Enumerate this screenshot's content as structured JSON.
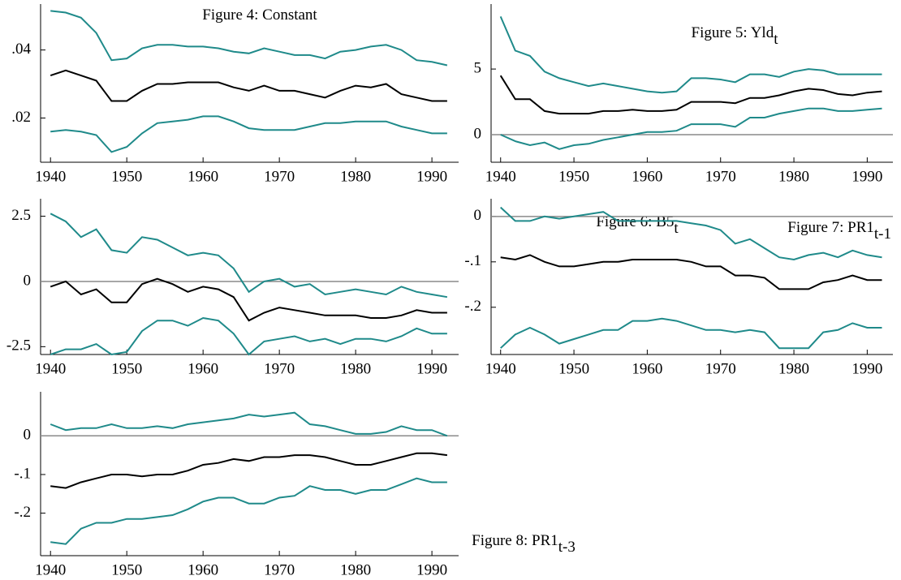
{
  "chart_data": [
    {
      "type": "line",
      "title": "Figure 4:  Constant",
      "x": [
        1940,
        1942,
        1944,
        1946,
        1948,
        1950,
        1952,
        1954,
        1956,
        1958,
        1960,
        1962,
        1964,
        1966,
        1968,
        1970,
        1972,
        1974,
        1976,
        1978,
        1980,
        1982,
        1984,
        1986,
        1988,
        1990,
        1992
      ],
      "series": [
        {
          "color": "#1f8a8a",
          "values": [
            0.0515,
            0.051,
            0.0495,
            0.045,
            0.037,
            0.0375,
            0.0405,
            0.0415,
            0.0415,
            0.041,
            0.041,
            0.0405,
            0.0395,
            0.039,
            0.0405,
            0.0395,
            0.0385,
            0.0385,
            0.0375,
            0.0395,
            0.04,
            0.041,
            0.0415,
            0.04,
            0.037,
            0.0365,
            0.0355
          ]
        },
        {
          "color": "#000000",
          "values": [
            0.0325,
            0.034,
            0.0325,
            0.031,
            0.025,
            0.025,
            0.028,
            0.03,
            0.03,
            0.0305,
            0.0305,
            0.0305,
            0.029,
            0.028,
            0.0295,
            0.028,
            0.028,
            0.027,
            0.026,
            0.028,
            0.0295,
            0.029,
            0.03,
            0.027,
            0.026,
            0.025,
            0.025
          ]
        },
        {
          "color": "#1f8a8a",
          "values": [
            0.016,
            0.0165,
            0.016,
            0.015,
            0.01,
            0.0115,
            0.0155,
            0.0185,
            0.019,
            0.0195,
            0.0205,
            0.0205,
            0.019,
            0.017,
            0.0165,
            0.0165,
            0.0165,
            0.0175,
            0.0185,
            0.0185,
            0.019,
            0.019,
            0.019,
            0.0175,
            0.0165,
            0.0155,
            0.0155
          ]
        }
      ],
      "xlim": [
        1938.7,
        1993.5
      ],
      "xticks": [
        1940,
        1950,
        1960,
        1970,
        1980,
        1990
      ],
      "ylim": [
        0.007,
        0.0535
      ],
      "yticks": [
        {
          "value": 0.02,
          "label": ".02"
        },
        {
          "value": 0.04,
          "label": ".04"
        }
      ],
      "zero_line": false
    },
    {
      "type": "line",
      "title": "Figure 5:  Yld",
      "title_subscript": "t",
      "x": [
        1940,
        1942,
        1944,
        1946,
        1948,
        1950,
        1952,
        1954,
        1956,
        1958,
        1960,
        1962,
        1964,
        1966,
        1968,
        1970,
        1972,
        1974,
        1976,
        1978,
        1980,
        1982,
        1984,
        1986,
        1988,
        1990,
        1992
      ],
      "series": [
        {
          "color": "#1f8a8a",
          "values": [
            9.0,
            6.4,
            6.0,
            4.8,
            4.3,
            4.0,
            3.7,
            3.9,
            3.7,
            3.5,
            3.3,
            3.2,
            3.3,
            4.3,
            4.3,
            4.2,
            4.0,
            4.6,
            4.6,
            4.4,
            4.8,
            5.0,
            4.9,
            4.6,
            4.6,
            4.6,
            4.6
          ]
        },
        {
          "color": "#000000",
          "values": [
            4.5,
            2.7,
            2.7,
            1.8,
            1.6,
            1.6,
            1.6,
            1.8,
            1.8,
            1.9,
            1.8,
            1.8,
            1.9,
            2.5,
            2.5,
            2.5,
            2.4,
            2.8,
            2.8,
            3.0,
            3.3,
            3.5,
            3.4,
            3.1,
            3.0,
            3.2,
            3.3
          ]
        },
        {
          "color": "#1f8a8a",
          "values": [
            0,
            -0.5,
            -0.8,
            -0.6,
            -1.1,
            -0.8,
            -0.7,
            -0.4,
            -0.2,
            0,
            0.2,
            0.2,
            0.3,
            0.8,
            0.8,
            0.8,
            0.6,
            1.3,
            1.3,
            1.6,
            1.8,
            2.0,
            2.0,
            1.8,
            1.8,
            1.9,
            2.0
          ]
        }
      ],
      "xlim": [
        1938.7,
        1993.5
      ],
      "xticks": [
        1940,
        1950,
        1960,
        1970,
        1980,
        1990
      ],
      "ylim": [
        -2.1,
        9.95
      ],
      "yticks": [
        0,
        5
      ],
      "zero_line": true
    },
    {
      "type": "line",
      "title": "Figure 6:  B5",
      "title_subscript": "t",
      "x": [
        1940,
        1942,
        1944,
        1946,
        1948,
        1950,
        1952,
        1954,
        1956,
        1958,
        1960,
        1962,
        1964,
        1966,
        1968,
        1970,
        1972,
        1974,
        1976,
        1978,
        1980,
        1982,
        1984,
        1986,
        1988,
        1990,
        1992
      ],
      "series": [
        {
          "color": "#1f8a8a",
          "values": [
            2.6,
            2.3,
            1.7,
            2.0,
            1.2,
            1.1,
            1.7,
            1.6,
            1.3,
            1.0,
            1.1,
            1.0,
            0.5,
            -0.4,
            0,
            0.1,
            -0.2,
            -0.1,
            -0.5,
            -0.4,
            -0.3,
            -0.4,
            -0.5,
            -0.2,
            -0.4,
            -0.5,
            -0.6
          ]
        },
        {
          "color": "#000000",
          "values": [
            -0.2,
            0.0,
            -0.5,
            -0.3,
            -0.8,
            -0.8,
            -0.1,
            0.1,
            -0.1,
            -0.4,
            -0.2,
            -0.3,
            -0.6,
            -1.5,
            -1.2,
            -1.0,
            -1.1,
            -1.2,
            -1.3,
            -1.3,
            -1.3,
            -1.4,
            -1.4,
            -1.3,
            -1.1,
            -1.2,
            -1.2
          ]
        },
        {
          "color": "#1f8a8a",
          "values": [
            -2.8,
            -2.6,
            -2.6,
            -2.4,
            -2.8,
            -2.7,
            -1.9,
            -1.5,
            -1.5,
            -1.7,
            -1.4,
            -1.5,
            -2.0,
            -2.8,
            -2.3,
            -2.2,
            -2.1,
            -2.3,
            -2.2,
            -2.4,
            -2.2,
            -2.2,
            -2.3,
            -2.1,
            -1.8,
            -2.0,
            -2.0
          ]
        }
      ],
      "xlim": [
        1938.7,
        1993.5
      ],
      "xticks": [
        1940,
        1950,
        1960,
        1970,
        1980,
        1990
      ],
      "ylim": [
        -2.8,
        3.17
      ],
      "yticks": [
        -2.5,
        0,
        2.5
      ],
      "zero_line": true
    },
    {
      "type": "line",
      "title": "Figure 7:  PR1",
      "title_subscript": "t-1",
      "x": [
        1940,
        1942,
        1944,
        1946,
        1948,
        1950,
        1952,
        1954,
        1956,
        1958,
        1960,
        1962,
        1964,
        1966,
        1968,
        1970,
        1972,
        1974,
        1976,
        1978,
        1980,
        1982,
        1984,
        1986,
        1988,
        1990,
        1992
      ],
      "series": [
        {
          "color": "#1f8a8a",
          "values": [
            0.02,
            -0.01,
            -0.01,
            0.0,
            -0.005,
            0.0,
            0.005,
            0.01,
            -0.01,
            -0.01,
            -0.01,
            -0.01,
            -0.01,
            -0.015,
            -0.02,
            -0.03,
            -0.06,
            -0.05,
            -0.07,
            -0.09,
            -0.095,
            -0.085,
            -0.08,
            -0.09,
            -0.075,
            -0.085,
            -0.09
          ]
        },
        {
          "color": "#000000",
          "values": [
            -0.09,
            -0.095,
            -0.085,
            -0.1,
            -0.11,
            -0.11,
            -0.105,
            -0.1,
            -0.1,
            -0.095,
            -0.095,
            -0.095,
            -0.095,
            -0.1,
            -0.11,
            -0.11,
            -0.13,
            -0.13,
            -0.135,
            -0.16,
            -0.16,
            -0.16,
            -0.145,
            -0.14,
            -0.13,
            -0.14,
            -0.14
          ]
        },
        {
          "color": "#1f8a8a",
          "values": [
            -0.29,
            -0.26,
            -0.245,
            -0.26,
            -0.28,
            -0.27,
            -0.26,
            -0.25,
            -0.25,
            -0.23,
            -0.23,
            -0.225,
            -0.23,
            -0.24,
            -0.25,
            -0.25,
            -0.255,
            -0.25,
            -0.255,
            -0.29,
            -0.29,
            -0.29,
            -0.255,
            -0.25,
            -0.235,
            -0.245,
            -0.245
          ]
        }
      ],
      "xlim": [
        1938.7,
        1993.5
      ],
      "xticks": [
        1940,
        1950,
        1960,
        1970,
        1980,
        1990
      ],
      "ylim": [
        -0.304,
        0.039
      ],
      "yticks": [
        {
          "value": -0.2,
          "label": "-.2"
        },
        {
          "value": -0.1,
          "label": "-.1"
        },
        0
      ],
      "zero_line": true
    },
    {
      "type": "line",
      "title": "Figure 8:  PR1",
      "title_subscript": "t-3",
      "x": [
        1940,
        1942,
        1944,
        1946,
        1948,
        1950,
        1952,
        1954,
        1956,
        1958,
        1960,
        1962,
        1964,
        1966,
        1968,
        1970,
        1972,
        1974,
        1976,
        1978,
        1980,
        1982,
        1984,
        1986,
        1988,
        1990,
        1992
      ],
      "series": [
        {
          "color": "#1f8a8a",
          "values": [
            0.03,
            0.015,
            0.02,
            0.02,
            0.03,
            0.02,
            0.02,
            0.025,
            0.02,
            0.03,
            0.035,
            0.04,
            0.045,
            0.055,
            0.05,
            0.055,
            0.06,
            0.03,
            0.025,
            0.015,
            0.005,
            0.005,
            0.01,
            0.025,
            0.015,
            0.015,
            0.0
          ]
        },
        {
          "color": "#000000",
          "values": [
            -0.13,
            -0.135,
            -0.12,
            -0.11,
            -0.1,
            -0.1,
            -0.105,
            -0.1,
            -0.1,
            -0.09,
            -0.075,
            -0.07,
            -0.06,
            -0.065,
            -0.055,
            -0.055,
            -0.05,
            -0.05,
            -0.055,
            -0.065,
            -0.075,
            -0.075,
            -0.065,
            -0.055,
            -0.045,
            -0.045,
            -0.05
          ]
        },
        {
          "color": "#1f8a8a",
          "values": [
            -0.275,
            -0.28,
            -0.24,
            -0.225,
            -0.225,
            -0.215,
            -0.215,
            -0.21,
            -0.205,
            -0.19,
            -0.17,
            -0.16,
            -0.16,
            -0.175,
            -0.175,
            -0.16,
            -0.155,
            -0.13,
            -0.14,
            -0.14,
            -0.15,
            -0.14,
            -0.14,
            -0.125,
            -0.11,
            -0.12,
            -0.12
          ]
        }
      ],
      "xlim": [
        1938.7,
        1993.5
      ],
      "xticks": [
        1940,
        1950,
        1960,
        1970,
        1980,
        1990
      ],
      "ylim": [
        -0.31,
        0.114
      ],
      "yticks": [
        {
          "value": -0.2,
          "label": "-.2"
        },
        {
          "value": -0.1,
          "label": "-.1"
        },
        0
      ],
      "zero_line": true
    }
  ]
}
